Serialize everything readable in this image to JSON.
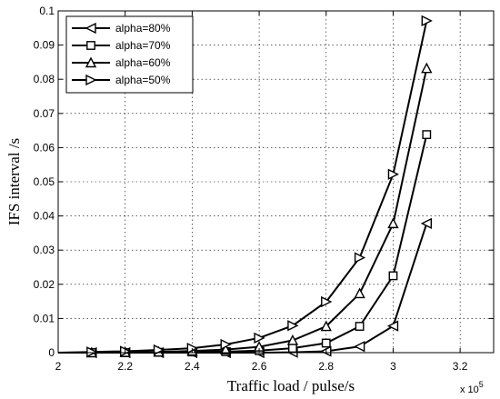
{
  "chart_data": {
    "type": "line",
    "xlabel": "Traffic load / pulse/s",
    "ylabel": "IFS interval /s",
    "x_exponent_label": "x 10",
    "x_exponent_power": "5",
    "xlim": [
      2.0,
      3.3
    ],
    "ylim": [
      0,
      0.1
    ],
    "x_ticks": [
      "2",
      "2.2",
      "2.4",
      "2.6",
      "2.8",
      "3",
      "3.2"
    ],
    "x_tick_values": [
      2.0,
      2.2,
      2.4,
      2.6,
      2.8,
      3.0,
      3.2
    ],
    "y_ticks": [
      "0",
      "0.01",
      "0.02",
      "0.03",
      "0.04",
      "0.05",
      "0.06",
      "0.07",
      "0.08",
      "0.09",
      "0.1"
    ],
    "y_tick_values": [
      0,
      0.01,
      0.02,
      0.03,
      0.04,
      0.05,
      0.06,
      0.07,
      0.08,
      0.09,
      0.1
    ],
    "grid": true,
    "legend_position": "top-left",
    "x": [
      2.0,
      2.1,
      2.2,
      2.3,
      2.4,
      2.5,
      2.6,
      2.7,
      2.8,
      2.9,
      3.0,
      3.1
    ],
    "series": [
      {
        "name": "alpha=80%",
        "marker": "triangle-left",
        "values": [
          0.0,
          0.0,
          0.0,
          0.0,
          0.0,
          0.0,
          0.0,
          0.0001,
          0.0004,
          0.0018,
          0.0078,
          0.0378
        ]
      },
      {
        "name": "alpha=70%",
        "marker": "square",
        "values": [
          0.0,
          0.0,
          0.0,
          0.0001,
          0.0002,
          0.0003,
          0.0006,
          0.0013,
          0.0028,
          0.0077,
          0.0225,
          0.0638
        ]
      },
      {
        "name": "alpha=60%",
        "marker": "triangle-up",
        "values": [
          0.0,
          0.0,
          0.0001,
          0.0002,
          0.0005,
          0.0009,
          0.0017,
          0.0036,
          0.0077,
          0.0173,
          0.0378,
          0.0832
        ]
      },
      {
        "name": "alpha=50%",
        "marker": "triangle-right",
        "values": [
          0.0,
          0.0002,
          0.0004,
          0.0008,
          0.0013,
          0.0024,
          0.0043,
          0.0079,
          0.0149,
          0.0278,
          0.0522,
          0.0971
        ]
      }
    ]
  }
}
